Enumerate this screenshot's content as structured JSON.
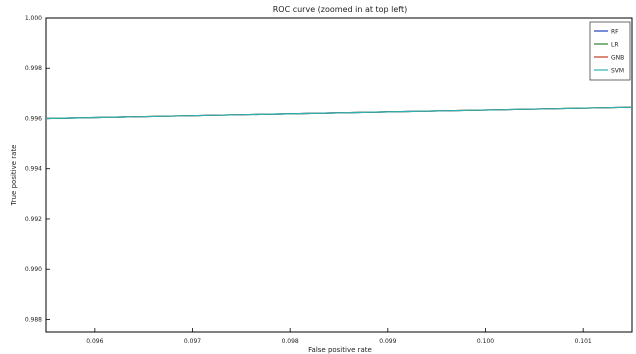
{
  "chart_data": {
    "type": "line",
    "title": "ROC curve (zoomed in at top left)",
    "xlabel": "False positive rate",
    "ylabel": "True positive rate",
    "xlim": [
      0.0955,
      0.1015
    ],
    "ylim": [
      0.9875,
      1.0
    ],
    "xticks": [
      0.096,
      0.097,
      0.098,
      0.099,
      0.1,
      0.101
    ],
    "xtick_labels": [
      "0.096",
      "0.097",
      "0.098",
      "0.099",
      "0.100",
      "0.101"
    ],
    "yticks": [
      0.988,
      0.99,
      0.992,
      0.994,
      0.996,
      0.998,
      1.0
    ],
    "ytick_labels": [
      "0.988",
      "0.990",
      "0.992",
      "0.994",
      "0.996",
      "0.998",
      "1.000"
    ],
    "grid": false,
    "legend_position": "top-right",
    "series": [
      {
        "name": "RF",
        "color": "#1f3fbf",
        "x": [
          0.0955,
          0.1015
        ],
        "y": [
          0.996,
          0.99645
        ]
      },
      {
        "name": "LR",
        "color": "#2f7f2f",
        "x": [
          0.0955,
          0.1015
        ],
        "y": [
          0.996,
          0.99645
        ]
      },
      {
        "name": "GNB",
        "color": "#c23b22",
        "x": [
          0.0955,
          0.1015
        ],
        "y": [
          0.996,
          0.99645
        ]
      },
      {
        "name": "SVM",
        "color": "#2bb3b3",
        "x": [
          0.0955,
          0.1015
        ],
        "y": [
          0.996,
          0.99645
        ]
      }
    ]
  }
}
